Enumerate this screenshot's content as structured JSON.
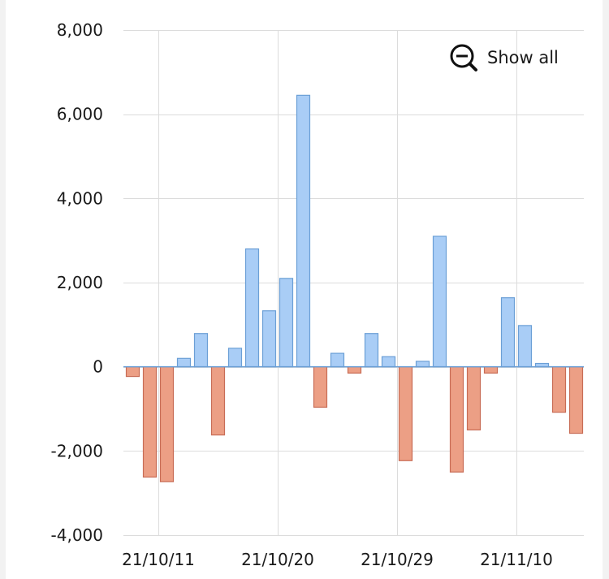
{
  "chart_data": {
    "type": "bar",
    "x_tick_labels": [
      "21/10/11",
      "21/10/20",
      "21/10/29",
      "21/11/10"
    ],
    "y_tick_labels": [
      "8,000",
      "6,000",
      "4,000",
      "2,000",
      "0",
      "-2,000",
      "-4,000"
    ],
    "y_ticks": [
      8000,
      6000,
      4000,
      2000,
      0,
      -2000,
      -4000
    ],
    "ylim": [
      -4000,
      8000
    ],
    "grid": true,
    "positive_color": "#a9cdf6",
    "positive_border": "#6b9fd6",
    "negative_color": "#ec9f85",
    "negative_border": "#c86c55",
    "values": [
      -230,
      -2620,
      -2730,
      200,
      790,
      -1620,
      440,
      2800,
      1330,
      2100,
      6450,
      -960,
      320,
      -150,
      790,
      240,
      -2230,
      130,
      3100,
      -2500,
      -1500,
      -150,
      1640,
      980,
      80,
      -1080,
      -1580
    ]
  },
  "controls": {
    "show_all_label": "Show all",
    "zoom_out_icon": "zoom-out-icon"
  }
}
